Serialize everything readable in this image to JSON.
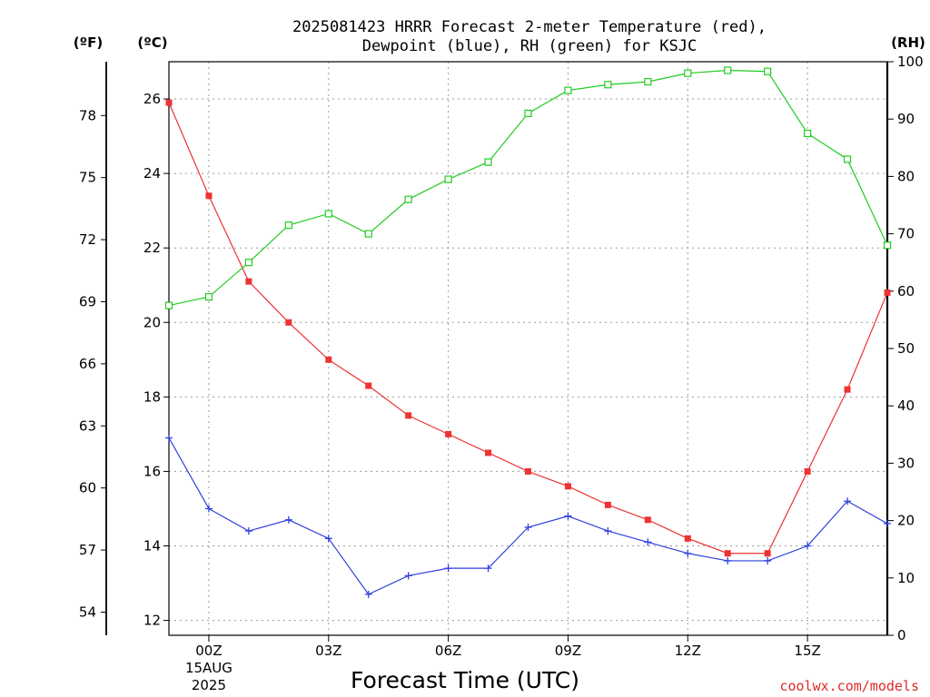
{
  "chart_data": {
    "type": "line",
    "title_line1": "2025081423 HRRR Forecast 2-meter Temperature (red),",
    "title_line2": "Dewpoint (blue), RH (green) for KSJC",
    "xlabel": "Forecast Time (UTC)",
    "x_hours": [
      -1,
      0,
      1,
      2,
      3,
      4,
      5,
      6,
      7,
      8,
      9,
      10,
      11,
      12,
      13,
      14,
      15,
      16,
      17
    ],
    "xlim": [
      -1,
      17
    ],
    "x_ticks": [
      {
        "hour": 0,
        "label": "00Z",
        "date_line1": "15AUG",
        "date_line2": "2025"
      },
      {
        "hour": 3,
        "label": "03Z"
      },
      {
        "hour": 6,
        "label": "06Z"
      },
      {
        "hour": 9,
        "label": "09Z"
      },
      {
        "hour": 12,
        "label": "12Z"
      },
      {
        "hour": 15,
        "label": "15Z"
      }
    ],
    "y_left_celsius": {
      "unit_label": "(ºC)",
      "ylim": [
        11.6,
        27.0
      ],
      "ticks": [
        12,
        14,
        16,
        18,
        20,
        22,
        24,
        26
      ]
    },
    "y_left_fahrenheit": {
      "unit_label": "(ºF)",
      "ticks": [
        54,
        57,
        60,
        63,
        66,
        69,
        72,
        75,
        78
      ]
    },
    "y_right_rh": {
      "unit_label": "(RH)",
      "ylim": [
        0,
        100
      ],
      "ticks": [
        0,
        10,
        20,
        30,
        40,
        50,
        60,
        70,
        80,
        90,
        100
      ]
    },
    "grid": true,
    "series": [
      {
        "color": "#ee3333",
        "marker": "filled-square",
        "axis": "celsius",
        "values": [
          25.9,
          23.4,
          21.1,
          20.0,
          19.0,
          18.3,
          17.5,
          17.0,
          16.5,
          16.0,
          15.6,
          15.1,
          14.7,
          14.2,
          13.8,
          13.8,
          16.0,
          18.2,
          20.8
        ]
      },
      {
        "color": "#2f3fdd",
        "marker": "plus",
        "axis": "celsius",
        "values": [
          16.9,
          15.0,
          14.4,
          14.7,
          14.2,
          12.7,
          13.2,
          13.4,
          13.4,
          14.5,
          14.8,
          14.4,
          14.1,
          13.8,
          13.6,
          13.6,
          14.0,
          15.2,
          14.6
        ]
      },
      {
        "color": "#22cc22",
        "marker": "open-square",
        "axis": "rh",
        "values": [
          57.5,
          59,
          65,
          71.5,
          73.5,
          70,
          76,
          79.5,
          82.5,
          91,
          95,
          96,
          96.5,
          98,
          98.5,
          98.3,
          87.5,
          83,
          68
        ]
      }
    ]
  },
  "footer": {
    "credit": "coolwx.com/models"
  }
}
